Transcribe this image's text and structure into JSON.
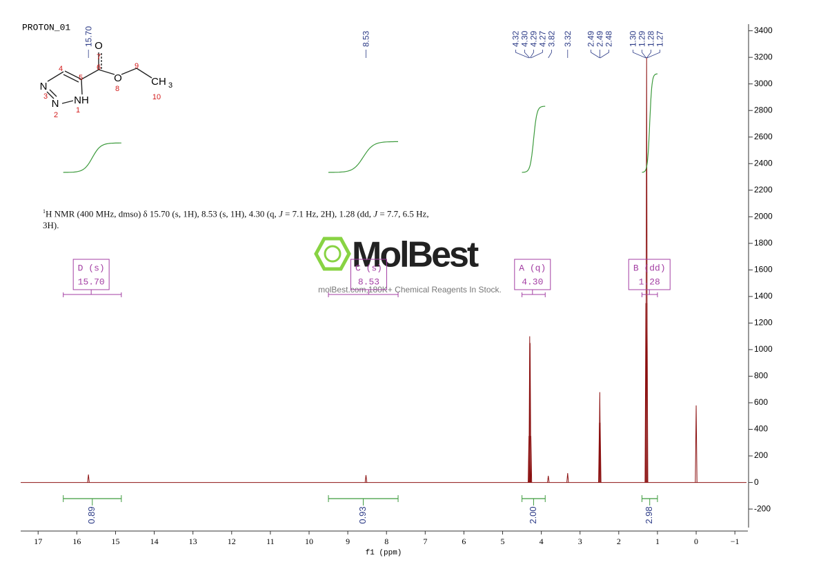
{
  "chart_data": {
    "type": "nmr",
    "title": "PROTON_01",
    "description": [
      "1",
      "H NMR (400 MHz, dmso) δ 15.70 (s, 1H), 8.53 (s, 1H), 4.30 (q, ",
      "J",
      " = 7.1 Hz, 2H), 1.28 (dd, ",
      "J",
      " = 7.7, 6.5 Hz, 3H)."
    ],
    "x_label": "f1 (ppm)",
    "xlim": [
      17.45,
      -1.3
    ],
    "xticks": [
      17,
      16,
      15,
      14,
      13,
      12,
      11,
      10,
      9,
      8,
      7,
      6,
      5,
      4,
      3,
      2,
      1,
      0,
      {
        "value": -1,
        "label": "−1"
      }
    ],
    "ylim": [
      -350,
      3450
    ],
    "yticks": [
      3400,
      3200,
      3000,
      2800,
      2600,
      2400,
      2200,
      2000,
      1800,
      1600,
      1400,
      1200,
      1000,
      800,
      600,
      400,
      200,
      0,
      -200
    ],
    "color": "#8b1010",
    "peaks": {
      "x": [
        15.7,
        8.53,
        4.32,
        4.3,
        4.29,
        4.27,
        3.82,
        3.32,
        2.5,
        2.49,
        2.48,
        1.3,
        1.28,
        1.27,
        0
      ],
      "values": [
        60,
        55,
        350,
        1100,
        1050,
        350,
        50,
        70,
        450,
        680,
        450,
        1350,
        3200,
        1350,
        580
      ]
    },
    "peak_labels": [
      {
        "value": 15.7,
        "label": "15.70"
      },
      {
        "value": 8.53,
        "label": "8.53"
      },
      {
        "value": 4.32,
        "label": "4.32"
      },
      {
        "value": 4.3,
        "label": "4.30"
      },
      {
        "value": 4.29,
        "label": "4.29"
      },
      {
        "value": 4.27,
        "label": "4.27"
      },
      {
        "value": 3.82,
        "label": "3.82"
      },
      {
        "value": 3.32,
        "label": "3.32"
      },
      {
        "value": 2.49,
        "label": "2.49"
      },
      {
        "value": 2.49,
        "label": "2.49"
      },
      {
        "value": 2.48,
        "label": "2.48"
      },
      {
        "value": 1.3,
        "label": "1.30"
      },
      {
        "value": 1.29,
        "label": "1.29"
      },
      {
        "value": 1.28,
        "label": "1.28"
      },
      {
        "value": 1.27,
        "label": "1.27"
      }
    ],
    "integrals": {
      "ranges": [
        [
          16.35,
          14.85
        ],
        [
          9.5,
          7.7
        ],
        [
          4.5,
          3.9
        ],
        [
          1.4,
          1.0
        ]
      ],
      "values": [
        0.89,
        0.93,
        2,
        2.98
      ],
      "value_labels": [
        "0.89",
        "0.93",
        "2.00",
        "2.98"
      ],
      "color": "#3c9a3c"
    },
    "multiplets": {
      "labels": [
        "D (s)",
        "C (s)",
        "A (q)",
        "B (dd)"
      ],
      "shifts": [
        15.7,
        8.53,
        4.3,
        1.28
      ],
      "shift_labels": [
        "15.70",
        "8.53",
        "4.30",
        "1.28"
      ],
      "color": "#a33ea3"
    },
    "molecule": {
      "atoms": [
        "N",
        "N",
        "NH",
        "O",
        "O",
        "CH"
      ],
      "subscript": "3",
      "numbers": [
        1,
        2,
        3,
        4,
        5,
        6,
        7,
        8,
        9,
        10
      ]
    },
    "watermark": {
      "logo": "MolBest",
      "tagline": "molBest.com,180K+ Chemical Reagents In Stock."
    }
  }
}
